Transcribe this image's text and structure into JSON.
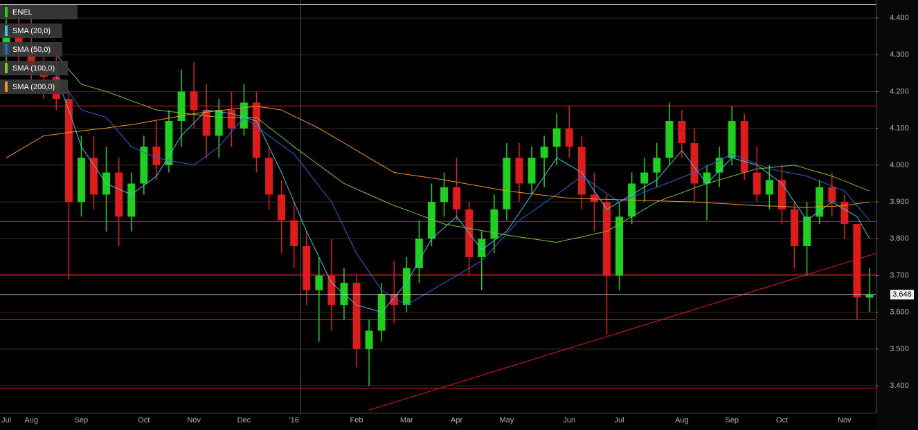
{
  "chart_data": {
    "type": "candlestick",
    "name": "ENEL",
    "categories": [
      "Jul",
      null,
      "Aug",
      null,
      null,
      null,
      "Sep",
      null,
      null,
      null,
      null,
      "Oct",
      null,
      null,
      null,
      "Nov",
      null,
      null,
      null,
      "Dec",
      null,
      null,
      null,
      "'16",
      null,
      null,
      null,
      null,
      "Feb",
      null,
      null,
      null,
      "Mar",
      null,
      null,
      null,
      "Apr",
      null,
      null,
      null,
      "May",
      null,
      null,
      null,
      null,
      "Jun",
      null,
      null,
      null,
      "Jul",
      null,
      null,
      null,
      null,
      "Aug",
      null,
      null,
      null,
      "Sep",
      null,
      null,
      null,
      "Oct",
      null,
      null,
      null,
      null,
      "Nov",
      null,
      null
    ],
    "ohlc": [
      [
        4.3,
        4.4,
        4.25,
        4.36
      ],
      [
        4.36,
        4.42,
        4.28,
        4.32
      ],
      [
        4.32,
        4.4,
        4.22,
        4.26
      ],
      [
        4.26,
        4.33,
        4.18,
        4.24
      ],
      [
        4.24,
        4.3,
        4.15,
        4.18
      ],
      [
        4.18,
        4.2,
        3.69,
        3.9
      ],
      [
        3.9,
        4.08,
        3.86,
        4.02
      ],
      [
        4.02,
        4.08,
        3.88,
        3.92
      ],
      [
        3.92,
        4.05,
        3.82,
        3.98
      ],
      [
        3.98,
        4.02,
        3.78,
        3.86
      ],
      [
        3.86,
        3.98,
        3.82,
        3.95
      ],
      [
        3.95,
        4.08,
        3.92,
        4.05
      ],
      [
        4.05,
        4.12,
        3.96,
        4.0
      ],
      [
        4.0,
        4.15,
        3.98,
        4.12
      ],
      [
        4.12,
        4.26,
        4.05,
        4.2
      ],
      [
        4.2,
        4.28,
        4.1,
        4.15
      ],
      [
        4.15,
        4.22,
        4.02,
        4.08
      ],
      [
        4.08,
        4.18,
        4.02,
        4.15
      ],
      [
        4.15,
        4.2,
        4.05,
        4.1
      ],
      [
        4.1,
        4.22,
        4.08,
        4.17
      ],
      [
        4.17,
        4.2,
        3.98,
        4.02
      ],
      [
        4.02,
        4.05,
        3.88,
        3.92
      ],
      [
        3.92,
        3.96,
        3.76,
        3.85
      ],
      [
        3.85,
        3.9,
        3.72,
        3.78
      ],
      [
        3.78,
        3.82,
        3.62,
        3.66
      ],
      [
        3.66,
        3.75,
        3.52,
        3.7
      ],
      [
        3.7,
        3.8,
        3.55,
        3.62
      ],
      [
        3.62,
        3.72,
        3.58,
        3.68
      ],
      [
        3.68,
        3.7,
        3.45,
        3.5
      ],
      [
        3.5,
        3.58,
        3.4,
        3.55
      ],
      [
        3.55,
        3.68,
        3.52,
        3.65
      ],
      [
        3.65,
        3.74,
        3.57,
        3.62
      ],
      [
        3.62,
        3.75,
        3.6,
        3.72
      ],
      [
        3.72,
        3.85,
        3.68,
        3.8
      ],
      [
        3.8,
        3.95,
        3.78,
        3.9
      ],
      [
        3.9,
        3.98,
        3.86,
        3.94
      ],
      [
        3.94,
        4.02,
        3.85,
        3.88
      ],
      [
        3.88,
        3.9,
        3.7,
        3.75
      ],
      [
        3.75,
        3.82,
        3.66,
        3.8
      ],
      [
        3.8,
        3.92,
        3.76,
        3.88
      ],
      [
        3.88,
        4.06,
        3.85,
        4.02
      ],
      [
        4.02,
        4.06,
        3.9,
        3.95
      ],
      [
        3.95,
        4.05,
        3.92,
        4.02
      ],
      [
        4.02,
        4.08,
        3.94,
        4.05
      ],
      [
        4.05,
        4.14,
        4.0,
        4.1
      ],
      [
        4.1,
        4.16,
        4.02,
        4.05
      ],
      [
        4.05,
        4.08,
        3.88,
        3.92
      ],
      [
        3.92,
        3.98,
        3.82,
        3.9
      ],
      [
        3.9,
        3.92,
        3.54,
        3.7
      ],
      [
        3.7,
        3.9,
        3.66,
        3.86
      ],
      [
        3.86,
        3.98,
        3.84,
        3.95
      ],
      [
        3.95,
        4.02,
        3.9,
        3.98
      ],
      [
        3.98,
        4.06,
        3.94,
        4.02
      ],
      [
        4.02,
        4.17,
        4.0,
        4.12
      ],
      [
        4.12,
        4.15,
        4.02,
        4.06
      ],
      [
        4.06,
        4.1,
        3.9,
        3.95
      ],
      [
        3.95,
        4.0,
        3.85,
        3.98
      ],
      [
        3.98,
        4.05,
        3.94,
        4.02
      ],
      [
        4.02,
        4.16,
        4.0,
        4.12
      ],
      [
        4.12,
        4.14,
        3.96,
        3.98
      ],
      [
        3.98,
        4.05,
        3.9,
        3.92
      ],
      [
        3.92,
        4.0,
        3.88,
        3.96
      ],
      [
        3.96,
        4.0,
        3.84,
        3.88
      ],
      [
        3.88,
        3.9,
        3.72,
        3.78
      ],
      [
        3.78,
        3.9,
        3.7,
        3.86
      ],
      [
        3.86,
        3.96,
        3.84,
        3.94
      ],
      [
        3.94,
        3.98,
        3.86,
        3.9
      ],
      [
        3.9,
        3.92,
        3.8,
        3.84
      ],
      [
        3.84,
        3.84,
        3.58,
        3.64
      ],
      [
        3.64,
        3.72,
        3.6,
        3.648
      ]
    ],
    "up_color": "#1fd11f",
    "down_color": "#e01b1b",
    "series": [
      {
        "name": "SMA (20,0)",
        "color": "#3ec6e0",
        "values": [
          null,
          null,
          null,
          null,
          4.24,
          4.15,
          4.05,
          4.0,
          3.95,
          3.935,
          3.92,
          3.945,
          3.97,
          4.025,
          4.08,
          4.115,
          4.15,
          4.145,
          4.14,
          4.13,
          4.12,
          4.05,
          3.98,
          3.9,
          3.82,
          3.75,
          3.68,
          3.65,
          3.62,
          3.61,
          3.6,
          3.64,
          3.68,
          3.74,
          3.8,
          3.83,
          3.86,
          3.815,
          3.77,
          3.795,
          3.82,
          3.87,
          3.92,
          3.97,
          4.02,
          4.0,
          3.98,
          3.93,
          3.88,
          3.9,
          3.92,
          3.94,
          3.96,
          4.0,
          4.04,
          3.995,
          3.95,
          3.985,
          4.02,
          4.01,
          4.0,
          3.975,
          3.95,
          3.9,
          3.85,
          3.875,
          3.9,
          3.88,
          3.86,
          3.8
        ]
      },
      {
        "name": "SMA (50,0)",
        "color": "#2a63d6",
        "values": [
          null,
          null,
          null,
          null,
          4.25,
          4.2,
          4.15,
          4.14,
          4.13,
          4.09,
          4.05,
          4.035,
          4.02,
          4.013,
          4.007,
          4.0,
          4.025,
          4.05,
          4.09,
          4.13,
          4.105,
          4.08,
          4.055,
          4.03,
          3.987,
          3.943,
          3.9,
          3.83,
          3.76,
          3.71,
          3.66,
          3.64,
          3.62,
          3.64,
          3.66,
          3.68,
          3.7,
          3.72,
          3.74,
          3.777,
          3.813,
          3.85,
          3.873,
          3.897,
          3.92,
          3.945,
          3.97,
          3.947,
          3.923,
          3.9,
          3.913,
          3.927,
          3.94,
          3.953,
          3.967,
          3.98,
          3.997,
          4.013,
          4.03,
          4.017,
          4.003,
          3.99,
          3.983,
          3.977,
          3.97,
          3.957,
          3.943,
          3.93,
          3.89,
          3.85
        ]
      },
      {
        "name": "SMA (100,0)",
        "color": "#7cc23a",
        "values": [
          null,
          null,
          null,
          null,
          4.3,
          4.26,
          4.22,
          4.21,
          4.2,
          4.188,
          4.175,
          4.163,
          4.15,
          4.146,
          4.142,
          4.138,
          4.134,
          4.13,
          4.13,
          4.13,
          4.13,
          4.103,
          4.077,
          4.05,
          4.025,
          4.0,
          3.975,
          3.95,
          3.935,
          3.92,
          3.905,
          3.89,
          3.878,
          3.865,
          3.853,
          3.84,
          3.834,
          3.828,
          3.822,
          3.816,
          3.81,
          3.805,
          3.8,
          3.795,
          3.79,
          3.798,
          3.805,
          3.813,
          3.82,
          3.84,
          3.86,
          3.88,
          3.9,
          3.913,
          3.925,
          3.938,
          3.95,
          3.96,
          3.97,
          3.98,
          3.99,
          3.993,
          3.997,
          4.0,
          3.99,
          3.98,
          3.97,
          3.957,
          3.943,
          3.93
        ]
      },
      {
        "name": "SMA (200,0)",
        "color": "#f0962a",
        "values": [
          4.02,
          4.04,
          4.06,
          4.08,
          4.084,
          4.089,
          4.093,
          4.097,
          4.101,
          4.106,
          4.11,
          4.116,
          4.122,
          4.128,
          4.134,
          4.14,
          4.144,
          4.148,
          4.152,
          4.156,
          4.16,
          4.155,
          4.15,
          4.133,
          4.117,
          4.1,
          4.08,
          4.06,
          4.04,
          4.02,
          4.0,
          3.98,
          3.975,
          3.97,
          3.965,
          3.96,
          3.954,
          3.948,
          3.942,
          3.936,
          3.93,
          3.926,
          3.922,
          3.918,
          3.914,
          3.91,
          3.909,
          3.908,
          3.907,
          3.906,
          3.905,
          3.904,
          3.903,
          3.902,
          3.901,
          3.9,
          3.898,
          3.896,
          3.894,
          3.892,
          3.89,
          3.889,
          3.888,
          3.886,
          3.885,
          3.887,
          3.888,
          3.89,
          3.895,
          3.9
        ]
      }
    ],
    "ylim": [
      3.327,
      4.449
    ],
    "yticks": [
      {
        "value": 3.4,
        "label": "3.400"
      },
      {
        "value": 3.5,
        "label": "3.500"
      },
      {
        "value": 3.6,
        "label": "3.600"
      },
      {
        "value": 3.7,
        "label": "3.700"
      },
      {
        "value": 3.8,
        "label": "3.800"
      },
      {
        "value": 3.9,
        "label": "3.900"
      },
      {
        "value": 4.0,
        "label": "4.000"
      },
      {
        "value": 4.1,
        "label": "4.100"
      },
      {
        "value": 4.2,
        "label": "4.200"
      },
      {
        "value": 4.3,
        "label": "4.300"
      },
      {
        "value": 4.4,
        "label": "4.400"
      }
    ],
    "grid": true,
    "hlines": [
      4.161,
      3.847,
      3.703,
      3.58,
      3.394
    ],
    "hline_color": "#e01b1b",
    "trendline": {
      "x": [
        29,
        69
      ],
      "values": [
        3.334,
        3.76
      ]
    },
    "last_price": 3.648
  }
}
